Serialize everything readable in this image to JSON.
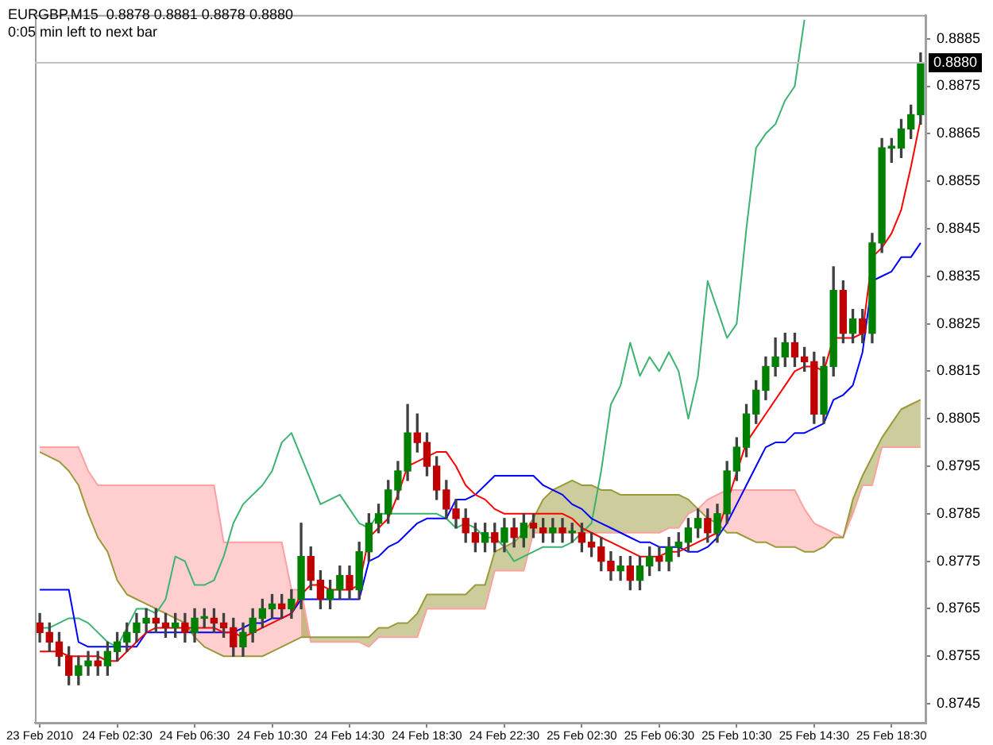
{
  "chart_data": {
    "type": "candlestick",
    "title": "EURGBP,M15  0.8878 0.8881 0.8878 0.8880",
    "subtitle": "0:05 min left to next bar",
    "categories": [
      "23 Feb 2010",
      null,
      null,
      null,
      null,
      null,
      null,
      null,
      "24 Feb 02:30",
      null,
      null,
      null,
      null,
      null,
      null,
      null,
      "24 Feb 06:30",
      null,
      null,
      null,
      null,
      null,
      null,
      null,
      "24 Feb 10:30",
      null,
      null,
      null,
      null,
      null,
      null,
      null,
      "24 Feb 14:30",
      null,
      null,
      null,
      null,
      null,
      null,
      null,
      "24 Feb 18:30",
      null,
      null,
      null,
      null,
      null,
      null,
      null,
      "24 Feb 22:30",
      null,
      null,
      null,
      null,
      null,
      null,
      null,
      "25 Feb 02:30",
      null,
      null,
      null,
      null,
      null,
      null,
      null,
      "25 Feb 06:30",
      null,
      null,
      null,
      null,
      null,
      null,
      null,
      "25 Feb 10:30",
      null,
      null,
      null,
      null,
      null,
      null,
      null,
      "25 Feb 14:30",
      null,
      null,
      null,
      null,
      null,
      null,
      null,
      "25 Feb 18:30",
      null,
      null,
      null
    ],
    "ohlc": [
      [
        0.8762,
        0.8764,
        0.8758,
        0.876
      ],
      [
        0.876,
        0.8762,
        0.8756,
        0.8758
      ],
      [
        0.8758,
        0.876,
        0.8753,
        0.8755
      ],
      [
        0.8755,
        0.8757,
        0.8749,
        0.8751
      ],
      [
        0.8751,
        0.8755,
        0.8749,
        0.8753
      ],
      [
        0.8753,
        0.8756,
        0.8751,
        0.8754
      ],
      [
        0.8754,
        0.8756,
        0.8751,
        0.8753
      ],
      [
        0.8753,
        0.8758,
        0.8751,
        0.8756
      ],
      [
        0.8756,
        0.876,
        0.8754,
        0.8758
      ],
      [
        0.8758,
        0.8762,
        0.8756,
        0.876
      ],
      [
        0.876,
        0.8764,
        0.8758,
        0.8762
      ],
      [
        0.8762,
        0.8765,
        0.876,
        0.8763
      ],
      [
        0.8763,
        0.8765,
        0.876,
        0.8762
      ],
      [
        0.8762,
        0.8764,
        0.8759,
        0.8761
      ],
      [
        0.8761,
        0.8764,
        0.8759,
        0.8762
      ],
      [
        0.8762,
        0.8764,
        0.8758,
        0.876
      ],
      [
        0.876,
        0.8765,
        0.8758,
        0.8763
      ],
      [
        0.8763,
        0.8765,
        0.8761,
        0.8763
      ],
      [
        0.8763,
        0.8765,
        0.876,
        0.8762
      ],
      [
        0.8762,
        0.8764,
        0.8759,
        0.8761
      ],
      [
        0.8761,
        0.8763,
        0.8755,
        0.8757
      ],
      [
        0.8757,
        0.8762,
        0.8755,
        0.876
      ],
      [
        0.876,
        0.8765,
        0.8758,
        0.8763
      ],
      [
        0.8763,
        0.8767,
        0.8761,
        0.8765
      ],
      [
        0.8765,
        0.8768,
        0.8763,
        0.8766
      ],
      [
        0.8766,
        0.8768,
        0.8763,
        0.8765
      ],
      [
        0.8765,
        0.8769,
        0.8763,
        0.8767
      ],
      [
        0.8767,
        0.8783,
        0.8765,
        0.8776
      ],
      [
        0.8776,
        0.8778,
        0.8769,
        0.8771
      ],
      [
        0.8771,
        0.8773,
        0.8765,
        0.8767
      ],
      [
        0.8767,
        0.8771,
        0.8765,
        0.8769
      ],
      [
        0.8769,
        0.8774,
        0.8767,
        0.8772
      ],
      [
        0.8772,
        0.8774,
        0.8767,
        0.8769
      ],
      [
        0.8769,
        0.8779,
        0.8767,
        0.8777
      ],
      [
        0.8777,
        0.8785,
        0.8775,
        0.8783
      ],
      [
        0.8783,
        0.8787,
        0.8781,
        0.8785
      ],
      [
        0.8785,
        0.8792,
        0.8783,
        0.879
      ],
      [
        0.879,
        0.8796,
        0.8788,
        0.8794
      ],
      [
        0.8794,
        0.8808,
        0.8792,
        0.8802
      ],
      [
        0.8802,
        0.8806,
        0.8798,
        0.88
      ],
      [
        0.88,
        0.8802,
        0.8793,
        0.8795
      ],
      [
        0.8795,
        0.8797,
        0.8788,
        0.879
      ],
      [
        0.879,
        0.8792,
        0.8784,
        0.8786
      ],
      [
        0.8786,
        0.8788,
        0.8782,
        0.8784
      ],
      [
        0.8784,
        0.8786,
        0.8779,
        0.8781
      ],
      [
        0.8781,
        0.8783,
        0.8777,
        0.8779
      ],
      [
        0.8779,
        0.8783,
        0.8777,
        0.8781
      ],
      [
        0.8781,
        0.8783,
        0.8777,
        0.8779
      ],
      [
        0.8779,
        0.8784,
        0.8777,
        0.8782
      ],
      [
        0.8782,
        0.8784,
        0.8778,
        0.878
      ],
      [
        0.878,
        0.8785,
        0.8778,
        0.8783
      ],
      [
        0.8783,
        0.8785,
        0.878,
        0.8782
      ],
      [
        0.8782,
        0.8784,
        0.8779,
        0.8781
      ],
      [
        0.8781,
        0.8784,
        0.8779,
        0.8782
      ],
      [
        0.8782,
        0.8784,
        0.8779,
        0.8781
      ],
      [
        0.8781,
        0.8783,
        0.8779,
        0.8781
      ],
      [
        0.8781,
        0.8783,
        0.8777,
        0.8779
      ],
      [
        0.8779,
        0.8781,
        0.8776,
        0.8778
      ],
      [
        0.8778,
        0.878,
        0.8773,
        0.8775
      ],
      [
        0.8775,
        0.8777,
        0.8771,
        0.8773
      ],
      [
        0.8773,
        0.8776,
        0.8771,
        0.8774
      ],
      [
        0.8774,
        0.8776,
        0.8769,
        0.8771
      ],
      [
        0.8771,
        0.8776,
        0.8769,
        0.8774
      ],
      [
        0.8774,
        0.8778,
        0.8772,
        0.8776
      ],
      [
        0.8776,
        0.8778,
        0.8773,
        0.8775
      ],
      [
        0.8775,
        0.878,
        0.8773,
        0.8778
      ],
      [
        0.8778,
        0.8781,
        0.8776,
        0.8779
      ],
      [
        0.8779,
        0.8784,
        0.8777,
        0.8782
      ],
      [
        0.8782,
        0.8786,
        0.878,
        0.8784
      ],
      [
        0.8784,
        0.8786,
        0.8779,
        0.8781
      ],
      [
        0.8781,
        0.8787,
        0.8779,
        0.8785
      ],
      [
        0.8785,
        0.8796,
        0.8783,
        0.8794
      ],
      [
        0.8794,
        0.8801,
        0.8792,
        0.8799
      ],
      [
        0.8799,
        0.8808,
        0.8797,
        0.8806
      ],
      [
        0.8806,
        0.8813,
        0.8804,
        0.8811
      ],
      [
        0.8811,
        0.8818,
        0.8809,
        0.8816
      ],
      [
        0.8816,
        0.8822,
        0.8814,
        0.8818
      ],
      [
        0.8818,
        0.8823,
        0.8816,
        0.8821
      ],
      [
        0.8821,
        0.8823,
        0.8816,
        0.8818
      ],
      [
        0.8818,
        0.882,
        0.8815,
        0.8817
      ],
      [
        0.8817,
        0.8819,
        0.8804,
        0.8806
      ],
      [
        0.8806,
        0.8818,
        0.8804,
        0.8816
      ],
      [
        0.8816,
        0.8837,
        0.8814,
        0.8832
      ],
      [
        0.8832,
        0.8834,
        0.8821,
        0.8823
      ],
      [
        0.8823,
        0.8828,
        0.8821,
        0.8826
      ],
      [
        0.8826,
        0.8828,
        0.8821,
        0.8823
      ],
      [
        0.8823,
        0.8844,
        0.8821,
        0.8842
      ],
      [
        0.8842,
        0.8864,
        0.884,
        0.8862
      ],
      [
        0.8862,
        0.8864,
        0.8859,
        0.8862
      ],
      [
        0.8862,
        0.8868,
        0.886,
        0.8866
      ],
      [
        0.8866,
        0.8871,
        0.8864,
        0.8869
      ],
      [
        0.8869,
        0.8882,
        0.8867,
        0.888
      ]
    ],
    "series": [
      {
        "type": "line",
        "color": "#ff0000",
        "values": [
          0.8756,
          0.8756,
          0.8756,
          0.8755,
          0.8755,
          0.8755,
          0.8755,
          0.8754,
          0.8754,
          0.8756,
          0.8758,
          0.876,
          0.8761,
          0.8761,
          0.8761,
          0.8761,
          0.8761,
          0.8761,
          0.8761,
          0.876,
          0.876,
          0.8759,
          0.876,
          0.8761,
          0.8762,
          0.8763,
          0.8764,
          0.8768,
          0.877,
          0.877,
          0.8769,
          0.8769,
          0.8769,
          0.877,
          0.878,
          0.8782,
          0.8784,
          0.8789,
          0.8795,
          0.8796,
          0.8797,
          0.8798,
          0.8798,
          0.8795,
          0.8791,
          0.8789,
          0.8788,
          0.8786,
          0.8785,
          0.8785,
          0.8785,
          0.8785,
          0.8785,
          0.8785,
          0.8785,
          0.8784,
          0.8782,
          0.8781,
          0.878,
          0.8779,
          0.8778,
          0.8777,
          0.8776,
          0.8776,
          0.8776,
          0.8777,
          0.8777,
          0.8778,
          0.8779,
          0.878,
          0.8781,
          null,
          null,
          0.88,
          0.8803,
          0.8806,
          0.8809,
          0.8812,
          0.8815,
          0.8816,
          0.8816,
          0.8815,
          0.8822,
          0.8822,
          0.8822,
          0.8823,
          0.8839,
          0.8841,
          0.8844,
          0.8849,
          0.8858,
          0.8868
        ]
      },
      {
        "type": "line",
        "color": "#0000ff",
        "values": [
          0.8769,
          0.8769,
          0.8769,
          0.8769,
          0.8758,
          0.8757,
          0.8757,
          0.8757,
          0.8757,
          0.8757,
          0.8757,
          0.876,
          0.876,
          0.876,
          0.876,
          0.876,
          0.876,
          0.876,
          0.876,
          0.876,
          0.876,
          0.8761,
          0.8762,
          0.8762,
          0.8763,
          0.8763,
          0.8764,
          0.8767,
          0.8767,
          0.8767,
          0.8767,
          0.8767,
          0.8767,
          0.8767,
          0.8775,
          0.8776,
          0.8778,
          0.8779,
          0.8781,
          0.8783,
          0.8784,
          0.8784,
          0.8784,
          0.8788,
          0.8788,
          0.8789,
          0.8791,
          0.8793,
          0.8793,
          0.8793,
          0.8793,
          0.8793,
          0.8791,
          0.879,
          0.8789,
          0.8787,
          0.8786,
          0.8784,
          0.8783,
          0.8782,
          0.8781,
          0.878,
          0.8779,
          0.8779,
          0.8778,
          0.8778,
          0.8778,
          0.8777,
          0.8777,
          0.8778,
          0.878,
          0.8783,
          0.8787,
          0.8791,
          0.8795,
          0.8799,
          0.88,
          0.88,
          0.8802,
          0.8802,
          0.8803,
          0.8804,
          0.8809,
          0.881,
          0.8812,
          0.8819,
          0.8834,
          0.8835,
          0.8836,
          0.8839,
          0.8839,
          0.8842
        ]
      },
      {
        "type": "line",
        "color": "#3cb371",
        "values": [
          0.8761,
          0.8761,
          0.8762,
          0.8763,
          0.8763,
          0.8762,
          0.876,
          0.8758,
          0.8757,
          0.8761,
          0.8765,
          0.8765,
          0.8764,
          0.8767,
          0.8776,
          0.8775,
          0.877,
          0.877,
          0.8771,
          0.8776,
          0.8783,
          0.8787,
          0.8789,
          0.8791,
          0.8794,
          0.88,
          0.8802,
          0.8797,
          0.8792,
          0.8787,
          0.8788,
          0.8789,
          0.8786,
          0.8783,
          0.8782,
          0.8785,
          0.8785,
          0.8785,
          0.8785,
          0.8785,
          0.8785,
          0.8785,
          0.8784,
          0.8782,
          0.8783,
          0.8782,
          0.878,
          0.878,
          0.8778,
          0.8775,
          0.8776,
          0.8777,
          0.8778,
          0.8778,
          0.8778,
          0.8779,
          0.8781,
          0.8783,
          0.8794,
          0.8808,
          0.8812,
          0.8821,
          0.8814,
          0.8818,
          0.8815,
          0.8819,
          0.8815,
          0.8805,
          0.8814,
          0.8834,
          0.8828,
          0.8822,
          0.8825,
          0.8845,
          0.8862,
          0.8865,
          0.8867,
          0.8872,
          0.8875,
          0.8889,
          null,
          null,
          null,
          null,
          null,
          null,
          null,
          null,
          null,
          null,
          null,
          null
        ]
      },
      {
        "type": "line",
        "color": "#9a9a3a",
        "lower": [
          null,
          null,
          null,
          null,
          null,
          null,
          null,
          null,
          null,
          null,
          null,
          null,
          null,
          null,
          null,
          null,
          null,
          null,
          null,
          null,
          null,
          null,
          null,
          null,
          null,
          null,
          null,
          0.8769,
          0.8758,
          0.8758,
          0.8758,
          0.8758,
          0.8758,
          0.8758,
          0.8757,
          0.8759,
          0.8759,
          0.8759,
          0.8759,
          0.8759,
          0.8765,
          0.8765,
          0.8765,
          0.8765,
          0.8765,
          0.8765,
          0.8765,
          0.8773,
          0.8773,
          0.8773,
          0.8773,
          0.8781,
          0.8781,
          0.8781,
          0.8781,
          0.8781,
          0.8781,
          0.8781,
          0.8781,
          0.8781,
          0.8781,
          0.8781,
          0.8781,
          0.8781,
          0.8781,
          0.8782,
          0.8782,
          0.8785,
          0.8786,
          null,
          null,
          null,
          null,
          null,
          null,
          null,
          null,
          null,
          null,
          null,
          null,
          null,
          null,
          0.878,
          0.8785,
          0.8791,
          0.8791,
          0.8799,
          0.8799,
          0.8799,
          0.8799,
          0.8799
        ],
        "upper": [
          null,
          null,
          null,
          null,
          null,
          null,
          null,
          null,
          null,
          null,
          null,
          null,
          null,
          null,
          null,
          null,
          null,
          null,
          null,
          null,
          null,
          null,
          null,
          null,
          null,
          null,
          null,
          0.8759,
          0.8759,
          0.8759,
          0.8759,
          0.8759,
          0.8759,
          0.8759,
          0.8759,
          0.8761,
          0.8761,
          0.8762,
          0.8762,
          0.8764,
          0.8768,
          0.8768,
          0.8768,
          0.8768,
          0.8768,
          0.877,
          0.877,
          0.8777,
          0.8778,
          0.8779,
          0.8781,
          0.8784,
          0.8788,
          0.879,
          0.8791,
          0.8792,
          0.8791,
          0.8791,
          0.879,
          0.879,
          0.8789,
          0.8789,
          0.8789,
          0.8789,
          0.8789,
          0.8789,
          0.8789,
          0.8788,
          0.8786,
          null,
          null,
          null,
          null,
          null,
          null,
          null,
          null,
          null,
          null,
          null,
          null,
          null,
          null,
          0.878,
          0.8788,
          0.8793,
          0.8797,
          0.8801,
          0.8804,
          0.8807,
          0.8808,
          0.8809
        ],
        "values": [
          0.8798,
          0.8797,
          0.8796,
          0.8794,
          0.8791,
          0.8785,
          0.878,
          0.8777,
          0.8771,
          0.8768,
          0.8767,
          0.8766,
          0.8765,
          0.8764,
          0.8763,
          0.8762,
          0.8759,
          0.8757,
          0.8756,
          0.8755,
          0.8755,
          0.8755,
          0.8755,
          0.8755,
          0.8756,
          0.8757,
          0.8758,
          0.8759,
          0.8759,
          0.8759,
          0.8759,
          0.8759,
          0.8759,
          0.8759,
          0.8759,
          0.8761,
          0.8761,
          0.8762,
          0.8762,
          0.8764,
          0.8768,
          0.8768,
          0.8768,
          0.8768,
          0.8768,
          0.877,
          0.877,
          0.8777,
          0.8778,
          0.8779,
          0.8781,
          0.8784,
          0.8788,
          0.879,
          0.8791,
          0.8792,
          0.8791,
          0.8791,
          0.879,
          0.879,
          0.8789,
          0.8789,
          0.8789,
          0.8789,
          0.8789,
          0.8789,
          0.8789,
          0.8788,
          0.8786,
          0.8784,
          0.8783,
          0.8781,
          0.8781,
          0.878,
          0.8779,
          0.8779,
          0.8778,
          0.8778,
          0.8778,
          0.8777,
          0.8777,
          0.8778,
          0.878,
          0.878,
          0.8788,
          0.8793,
          0.8797,
          0.8801,
          0.8804,
          0.8807,
          0.8808,
          0.8809
        ]
      },
      {
        "type": "line",
        "color": "#ffa0a0",
        "lower": [
          0.8798,
          0.8797,
          0.8796,
          0.8794,
          0.8791,
          0.8785,
          0.878,
          0.8777,
          0.8771,
          0.8768,
          0.8767,
          0.8766,
          0.8765,
          0.8764,
          0.8763,
          0.8762,
          0.8759,
          0.8757,
          0.8756,
          0.8755,
          0.8755,
          0.8755,
          0.8755,
          0.8755,
          0.8756,
          0.8757,
          0.8758,
          0.8759,
          0.8759,
          null,
          null,
          null,
          null,
          null,
          null,
          null,
          null,
          null,
          null,
          null,
          null,
          null,
          null,
          null,
          null,
          null,
          null,
          null,
          null,
          null,
          null,
          null,
          null,
          null,
          null,
          null,
          null,
          null,
          null,
          null,
          null,
          null,
          null,
          null,
          null,
          null,
          null,
          null,
          0.8786,
          0.8784,
          0.8783,
          0.8781,
          0.8781,
          0.878,
          0.8779,
          0.8779,
          0.8778,
          0.8778,
          0.8778,
          0.8777,
          0.8777,
          0.8778,
          0.878,
          0.878,
          0.8788,
          null,
          null,
          null,
          null,
          null,
          null,
          null
        ],
        "upper": [
          0.8799,
          0.8799,
          0.8799,
          0.8799,
          0.8799,
          0.8794,
          0.8791,
          0.8791,
          0.8791,
          0.8791,
          0.8791,
          0.8791,
          0.8791,
          0.8791,
          0.8791,
          0.8791,
          0.8791,
          0.8791,
          0.8791,
          0.8779,
          0.8779,
          0.8779,
          0.8779,
          0.8779,
          0.8779,
          0.8779,
          0.8769,
          0.8769,
          0.8758,
          null,
          null,
          null,
          null,
          null,
          null,
          null,
          null,
          null,
          null,
          null,
          null,
          null,
          null,
          null,
          null,
          null,
          null,
          null,
          null,
          null,
          null,
          null,
          null,
          null,
          null,
          null,
          null,
          null,
          null,
          null,
          null,
          null,
          null,
          null,
          null,
          null,
          null,
          null,
          0.8786,
          0.8788,
          0.8789,
          0.879,
          0.879,
          0.879,
          0.879,
          0.879,
          0.879,
          0.879,
          0.879,
          0.8786,
          0.8783,
          0.8782,
          0.8781,
          0.878,
          0.8785,
          null,
          null,
          null,
          null,
          null,
          null,
          null
        ],
        "values": [
          0.8799,
          0.8799,
          0.8799,
          0.8799,
          0.8799,
          0.8794,
          0.8791,
          0.8791,
          0.8791,
          0.8791,
          0.8791,
          0.8791,
          0.8791,
          0.8791,
          0.8791,
          0.8791,
          0.8791,
          0.8791,
          0.8791,
          0.8779,
          0.8779,
          0.8779,
          0.8779,
          0.8779,
          0.8779,
          0.8779,
          0.8769,
          0.8769,
          0.8758,
          0.8758,
          0.8758,
          0.8758,
          0.8758,
          0.8758,
          0.8757,
          0.8759,
          0.8759,
          0.8759,
          0.8759,
          0.8759,
          0.8765,
          0.8765,
          0.8765,
          0.8765,
          0.8765,
          0.8765,
          0.8765,
          0.8773,
          0.8773,
          0.8773,
          0.8773,
          0.8781,
          0.8781,
          0.8781,
          0.8781,
          0.8781,
          0.8781,
          0.8781,
          0.8781,
          0.8781,
          0.8781,
          0.8781,
          0.8781,
          0.8781,
          0.8781,
          0.8782,
          0.8782,
          0.8785,
          0.8786,
          0.8788,
          0.8789,
          0.879,
          0.879,
          0.879,
          0.879,
          0.879,
          0.879,
          0.879,
          0.879,
          0.8786,
          0.8783,
          0.8782,
          0.8781,
          0.878,
          0.8785,
          0.8791,
          0.8791,
          0.8799,
          0.8799,
          0.8799,
          0.8799,
          0.8799
        ]
      }
    ],
    "ylim": [
      0.8741,
      0.889
    ],
    "yticks": [
      0.8745,
      0.8755,
      0.8765,
      0.8775,
      0.8785,
      0.8795,
      0.8805,
      0.8815,
      0.8825,
      0.8835,
      0.8845,
      0.8855,
      0.8865,
      0.8875,
      0.8885
    ],
    "ref_lines": [
      {
        "axis": "y",
        "value": 0.888,
        "label": "0.8880",
        "color": "#c0c0c0"
      }
    ],
    "grid": false,
    "legend": false
  }
}
